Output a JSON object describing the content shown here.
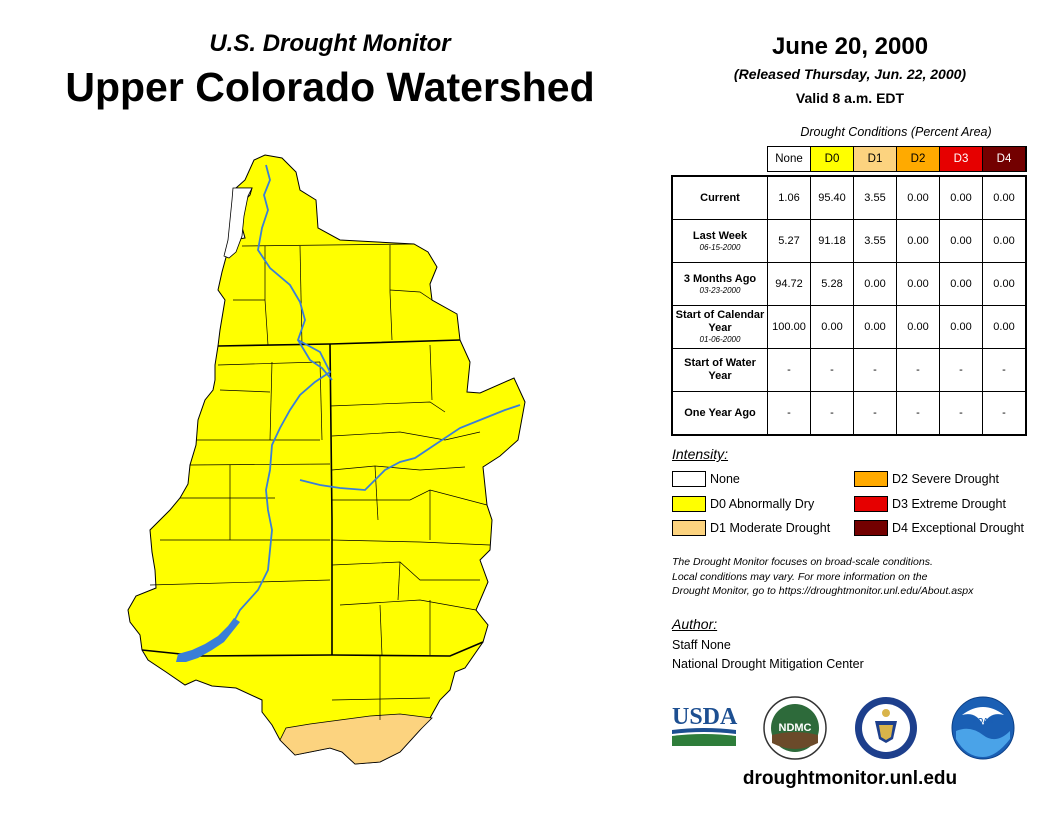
{
  "header": {
    "subtitle": "U.S. Drought Monitor",
    "title": "Upper Colorado Watershed",
    "date": "June 20, 2000",
    "released": "(Released Thursday, Jun. 22, 2000)",
    "valid": "Valid 8 a.m. EDT"
  },
  "table": {
    "caption": "Drought Conditions (Percent Area)",
    "columns": [
      "None",
      "D0",
      "D1",
      "D2",
      "D3",
      "D4"
    ],
    "column_colors": [
      "#ffffff",
      "#ffff00",
      "#fcd37f",
      "#ffaa00",
      "#e60000",
      "#730000"
    ],
    "rows": [
      {
        "label": "Current",
        "date": "",
        "values": [
          "1.06",
          "95.40",
          "3.55",
          "0.00",
          "0.00",
          "0.00"
        ]
      },
      {
        "label": "Last Week",
        "date": "06-15-2000",
        "values": [
          "5.27",
          "91.18",
          "3.55",
          "0.00",
          "0.00",
          "0.00"
        ]
      },
      {
        "label": "3 Months Ago",
        "date": "03-23-2000",
        "values": [
          "94.72",
          "5.28",
          "0.00",
          "0.00",
          "0.00",
          "0.00"
        ]
      },
      {
        "label": "Start of Calendar Year",
        "date": "01-06-2000",
        "values": [
          "100.00",
          "0.00",
          "0.00",
          "0.00",
          "0.00",
          "0.00"
        ]
      },
      {
        "label": "Start of Water Year",
        "date": "",
        "values": [
          "-",
          "-",
          "-",
          "-",
          "-",
          "-"
        ]
      },
      {
        "label": "One Year Ago",
        "date": "",
        "values": [
          "-",
          "-",
          "-",
          "-",
          "-",
          "-"
        ]
      }
    ]
  },
  "legend": {
    "title": "Intensity:",
    "items": [
      {
        "label": "None",
        "color": "#ffffff"
      },
      {
        "label": "D0 Abnormally Dry",
        "color": "#ffff00"
      },
      {
        "label": "D1 Moderate Drought",
        "color": "#fcd37f"
      },
      {
        "label": "D2 Severe Drought",
        "color": "#ffaa00"
      },
      {
        "label": "D3 Extreme Drought",
        "color": "#e60000"
      },
      {
        "label": "D4 Exceptional Drought",
        "color": "#730000"
      }
    ]
  },
  "note": {
    "line1": "The Drought Monitor focuses on broad-scale conditions.",
    "line2": "Local conditions may vary. For more information on the",
    "line3": "Drought Monitor, go to https://droughtmonitor.unl.edu/About.aspx"
  },
  "author": {
    "title": "Author:",
    "name": "Staff None",
    "org": "National Drought Mitigation Center"
  },
  "logos": {
    "usda": "USDA",
    "ndmc": "NDMC",
    "noaa": "NOAA"
  },
  "map": {
    "fill_d0": "#ffff00",
    "fill_d1": "#fcd37f",
    "fill_none": "#ffffff",
    "river_color": "#3a7ed8"
  },
  "footer": {
    "url": "droughtmonitor.unl.edu"
  }
}
